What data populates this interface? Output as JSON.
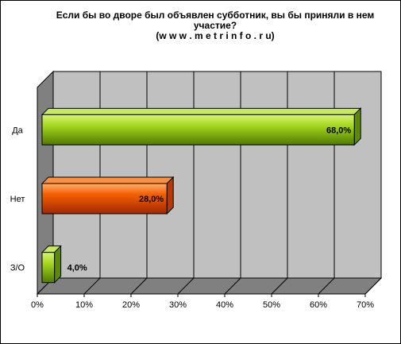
{
  "chart_data": {
    "type": "bar",
    "orientation": "horizontal",
    "title": "Если бы во дворе был объявлен субботник,  вы бы приняли в нем участие?",
    "subtitle": "(w w w . m e t r i n f o . r u)",
    "categories": [
      "Да",
      "Нет",
      "З/О"
    ],
    "values": [
      68.0,
      28.0,
      4.0
    ],
    "value_labels": [
      "68,0%",
      "28,0%",
      "4,0%"
    ],
    "xlim": [
      0,
      70
    ],
    "xticks": [
      0,
      10,
      20,
      30,
      40,
      50,
      60,
      70
    ],
    "xtick_labels": [
      "0%",
      "10%",
      "20%",
      "30%",
      "40%",
      "50%",
      "60%",
      "70%"
    ],
    "xlabel": "",
    "ylabel": "",
    "grid": true,
    "style": "3d",
    "bar_colors": [
      "#88bb00",
      "#f05000",
      "#88bb00"
    ],
    "plot_background": "#c0c0c0",
    "floor_color": "#808080"
  }
}
